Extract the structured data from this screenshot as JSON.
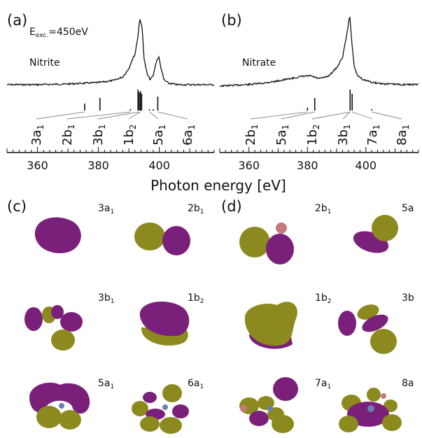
{
  "panels": {
    "a": {
      "letter": "(a)",
      "excitation": "E",
      "excitation_sub": "exc.",
      "excitation_val": "=450eV",
      "sample": "Nitrite",
      "orbitals": [
        "3a",
        "2b",
        "3b",
        "1b",
        "5a",
        "6a"
      ],
      "orbital_subs": [
        "1",
        "1",
        "1",
        "2",
        "1",
        "1"
      ]
    },
    "b": {
      "letter": "(b)",
      "sample": "Nitrate",
      "orbitals": [
        "2b",
        "5a",
        "1b",
        "3b",
        "7a",
        "8a"
      ],
      "orbital_subs": [
        "1",
        "1",
        "2",
        "1",
        "1",
        "1"
      ]
    },
    "c": {
      "letter": "(c)",
      "labels": [
        "3a",
        "2b",
        "3b",
        "1b",
        "5a",
        "6a"
      ],
      "label_subs": [
        "1",
        "1",
        "1",
        "2",
        "1",
        "1"
      ]
    },
    "d": {
      "letter": "(d)",
      "labels": [
        "2b",
        "5a",
        "1b",
        "3b",
        "7a",
        "8a"
      ],
      "label_subs": [
        "1",
        "",
        "2",
        "",
        "1",
        ""
      ]
    }
  },
  "colors": {
    "lobe_purple": "#7a1f7a",
    "lobe_olive": "#8c8a1e",
    "line": "#111111",
    "atom_pink": "#c47a7a",
    "atom_blue": "#6a7fb5"
  },
  "chart_data": [
    {
      "type": "line",
      "panel": "a",
      "xlabel": "Photon energy [eV]",
      "xlim": [
        350,
        418
      ],
      "x_ticks": [
        360,
        380,
        400
      ],
      "x_tick_labels": [
        "360",
        "380",
        "400"
      ],
      "series": [
        {
          "x": [
            350,
            360,
            370,
            375,
            380,
            385,
            388,
            390,
            391,
            392,
            393,
            393.6,
            394.4,
            395,
            396,
            397,
            398,
            399,
            399.8,
            400.5,
            401.5,
            403,
            406,
            410,
            418
          ],
          "y": [
            0.05,
            0.05,
            0.06,
            0.07,
            0.08,
            0.11,
            0.16,
            0.28,
            0.4,
            0.48,
            0.75,
            1.0,
            0.85,
            0.42,
            0.2,
            0.12,
            0.18,
            0.38,
            0.45,
            0.3,
            0.12,
            0.07,
            0.05,
            0.05,
            0.05
          ]
        }
      ],
      "sticks": {
        "x": [
          375.5,
          380.5,
          390.5,
          393.0,
          393.4,
          393.8,
          394.2,
          396.8,
          398.0,
          399.5
        ],
        "h": [
          0.25,
          0.45,
          0.05,
          0.75,
          0.65,
          0.7,
          0.6,
          0.05,
          0.05,
          0.5
        ]
      }
    },
    {
      "type": "line",
      "panel": "b",
      "xlabel": "Photon energy [eV]",
      "xlim": [
        350,
        418
      ],
      "x_ticks": [
        360,
        380,
        400
      ],
      "x_tick_labels": [
        "360",
        "380",
        "400"
      ],
      "series": [
        {
          "x": [
            350,
            360,
            365,
            370,
            374,
            378,
            381,
            384,
            387,
            390,
            392,
            393.5,
            394.5,
            395.2,
            396,
            397,
            399,
            402,
            406,
            412,
            418
          ],
          "y": [
            0.03,
            0.05,
            0.07,
            0.1,
            0.13,
            0.16,
            0.17,
            0.13,
            0.16,
            0.28,
            0.42,
            0.75,
            1.0,
            0.62,
            0.3,
            0.18,
            0.12,
            0.08,
            0.06,
            0.05,
            0.05
          ]
        }
      ],
      "sticks": {
        "x": [
          380.0,
          382.5,
          394.6,
          395.3,
          402.0
        ],
        "h": [
          0.1,
          0.45,
          0.75,
          0.6,
          0.05
        ]
      }
    }
  ]
}
